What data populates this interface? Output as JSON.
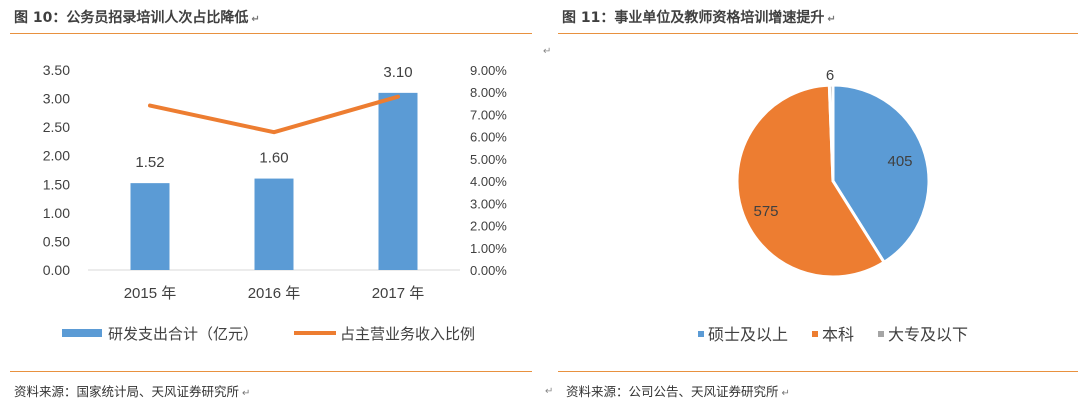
{
  "left_title": "图 10：公务员招录培训人次占比降低",
  "right_title": "图 11：事业单位及教师资格培训增速提升",
  "left_source": "资料来源：国家统计局、天风证券研究所",
  "right_source": "资料来源：公司公告、天风证券研究所",
  "para_mark": "↵",
  "colors": {
    "accent": "#e8913f",
    "bar": "#5b9bd5",
    "line": "#ed7d31",
    "slice_other": "#a5a5a5"
  },
  "chart_data": [
    {
      "type": "bar",
      "categories": [
        "2015 年",
        "2016 年",
        "2017 年"
      ],
      "series": [
        {
          "name": "研发支出合计（亿元）",
          "values": [
            1.52,
            1.6,
            3.1
          ],
          "labels": [
            "1.52",
            "1.60",
            "3.10"
          ],
          "color": "#5b9bd5",
          "axis": "left"
        },
        {
          "name": "占主营业务收入比例",
          "type": "line",
          "values": [
            7.4,
            6.2,
            7.8
          ],
          "color": "#ed7d31",
          "axis": "right"
        }
      ],
      "ylim": [
        0,
        3.5
      ],
      "y_ticks": [
        "0.00",
        "0.50",
        "1.00",
        "1.50",
        "2.00",
        "2.50",
        "3.00",
        "3.50"
      ],
      "y2lim": [
        0,
        9
      ],
      "y2_ticks": [
        "0.00%",
        "1.00%",
        "2.00%",
        "3.00%",
        "4.00%",
        "5.00%",
        "6.00%",
        "7.00%",
        "8.00%",
        "9.00%"
      ],
      "grid": false,
      "legend": "bottom"
    },
    {
      "type": "pie",
      "categories": [
        "硕士及以上",
        "本科",
        "大专及以下"
      ],
      "values": [
        405,
        575,
        6
      ],
      "labels": [
        "405",
        "575",
        "6"
      ],
      "colors": [
        "#5b9bd5",
        "#ed7d31",
        "#a5a5a5"
      ],
      "legend": "bottom"
    }
  ]
}
